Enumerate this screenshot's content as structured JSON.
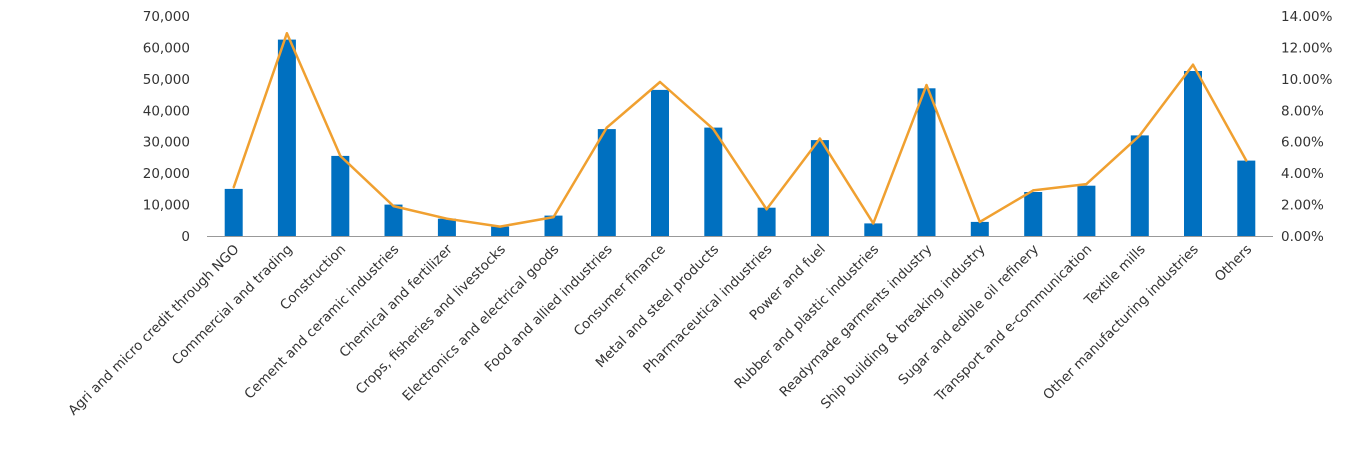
{
  "chart_data": {
    "type": "bar",
    "title": "",
    "xlabel": "",
    "ylabel": "",
    "categories": [
      "Agri and micro credit through NGO",
      "Commercial and trading",
      "Construction",
      "Cement and ceramic industries",
      "Chemical and fertilizer",
      "Crops, fisheries and livestocks",
      "Electronics and electrical goods",
      "Food and allied industries",
      "Consumer finance",
      "Metal and steel products",
      "Pharmaceutical industries",
      "Power and fuel",
      "Rubber and plastic industries",
      "Readymade garments industry",
      "Ship building & breaking industry",
      "Sugar and edible oil refinery",
      "Transport and e-communication",
      "Textile mills",
      "Other manufacturing industries",
      "Others"
    ],
    "series": [
      {
        "type": "bar",
        "axis": "left",
        "color": "#0070C0",
        "values": [
          15000,
          62500,
          25500,
          10000,
          5500,
          3000,
          6500,
          34000,
          46500,
          34500,
          9000,
          30500,
          4000,
          47000,
          4500,
          14000,
          16000,
          32000,
          52500,
          24000
        ]
      },
      {
        "type": "line",
        "axis": "right",
        "color": "#F0A030",
        "values": [
          3.1,
          12.9,
          5.1,
          1.9,
          1.1,
          0.6,
          1.2,
          6.9,
          9.8,
          6.8,
          1.7,
          6.2,
          0.8,
          9.6,
          0.9,
          2.9,
          3.3,
          6.4,
          10.9,
          4.8
        ]
      }
    ],
    "y_left": {
      "min": 0,
      "max": 70000,
      "step": 10000,
      "tick_labels": [
        "0",
        "10,000",
        "20,000",
        "30,000",
        "40,000",
        "50,000",
        "60,000",
        "70,000"
      ]
    },
    "y_right": {
      "min": 0,
      "max": 14,
      "step": 2,
      "tick_labels": [
        "0.00%",
        "2.00%",
        "4.00%",
        "6.00%",
        "8.00%",
        "10.00%",
        "12.00%",
        "14.00%"
      ]
    },
    "grid": false,
    "legend": "none"
  }
}
